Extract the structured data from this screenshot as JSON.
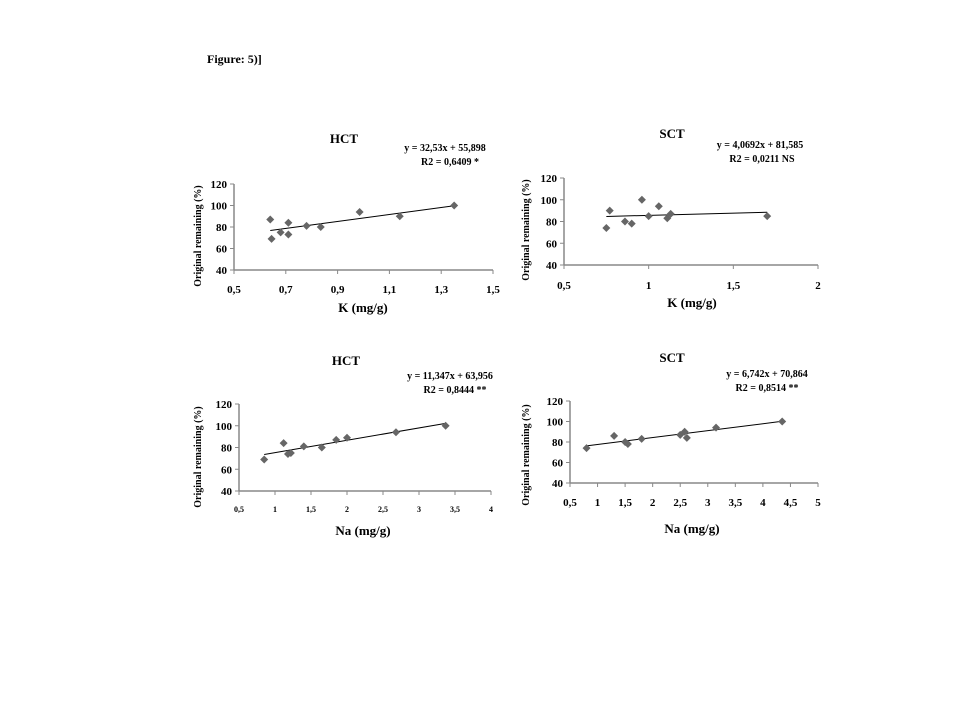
{
  "figure_label": "Figure: 5)]",
  "colors": {
    "marker": "#666666",
    "axis": "#888888",
    "trend": "#000000"
  },
  "chart_data": [
    {
      "type": "scatter",
      "title": "HCT",
      "equation": "y = 32,53x + 55,898",
      "r2": "R2 = 0,6409  *",
      "xlabel": "K (mg/g)",
      "ylabel": "Original remaining (%)",
      "xlim": [
        0.5,
        1.5
      ],
      "ylim": [
        40,
        120
      ],
      "xticks": [
        "0,5",
        "0,7",
        "0,9",
        "1,1",
        "1,3",
        "1,5"
      ],
      "xtick_values": [
        0.5,
        0.7,
        0.9,
        1.1,
        1.3,
        1.5
      ],
      "yticks": [
        "40",
        "60",
        "80",
        "100",
        "120"
      ],
      "ytick_values": [
        40,
        60,
        80,
        100,
        120
      ],
      "trend": {
        "slope": 32.53,
        "intercept": 55.898,
        "x_range": [
          0.64,
          1.35
        ]
      },
      "points": [
        [
          0.64,
          87
        ],
        [
          0.645,
          69
        ],
        [
          0.68,
          75
        ],
        [
          0.71,
          84
        ],
        [
          0.71,
          73
        ],
        [
          0.78,
          81
        ],
        [
          0.835,
          80
        ],
        [
          0.985,
          94
        ],
        [
          1.14,
          90
        ],
        [
          1.35,
          100
        ]
      ]
    },
    {
      "type": "scatter",
      "title": "SCT",
      "equation": "y = 4,0692x + 81,585",
      "r2": "R2 = 0,0211 NS",
      "xlabel": "K (mg/g)",
      "ylabel": "Original remaining (%)",
      "xlim": [
        0.5,
        2
      ],
      "ylim": [
        40,
        120
      ],
      "xticks": [
        "0,5",
        "1",
        "1,5",
        "2"
      ],
      "xtick_values": [
        0.5,
        1,
        1.5,
        2
      ],
      "yticks": [
        "40",
        "60",
        "80",
        "100",
        "120"
      ],
      "ytick_values": [
        40,
        60,
        80,
        100,
        120
      ],
      "trend": {
        "slope": 4.0692,
        "intercept": 81.585,
        "x_range": [
          0.75,
          1.7
        ]
      },
      "points": [
        [
          0.75,
          74
        ],
        [
          0.77,
          90
        ],
        [
          0.86,
          80
        ],
        [
          0.9,
          78
        ],
        [
          0.96,
          100
        ],
        [
          1.0,
          85
        ],
        [
          1.06,
          94
        ],
        [
          1.11,
          83
        ],
        [
          1.13,
          87
        ],
        [
          1.7,
          85
        ]
      ]
    },
    {
      "type": "scatter",
      "title": "HCT",
      "equation": "y = 11,347x + 63,956",
      "r2": "R2 = 0,8444 **",
      "xlabel": "Na (mg/g)",
      "ylabel": "Original remaining (%)",
      "xlim": [
        0.5,
        4
      ],
      "ylim": [
        40,
        120
      ],
      "xticks": [
        "0,5",
        "1",
        "1,5",
        "2",
        "2,5",
        "3",
        "3,5",
        "4"
      ],
      "xtick_values": [
        0.5,
        1,
        1.5,
        2,
        2.5,
        3,
        3.5,
        4
      ],
      "yticks": [
        "40",
        "60",
        "80",
        "100",
        "120"
      ],
      "ytick_values": [
        40,
        60,
        80,
        100,
        120
      ],
      "trend": {
        "slope": 11.347,
        "intercept": 63.956,
        "x_range": [
          0.85,
          3.37
        ]
      },
      "points": [
        [
          0.85,
          69
        ],
        [
          1.12,
          84
        ],
        [
          1.18,
          74
        ],
        [
          1.22,
          75
        ],
        [
          1.4,
          81
        ],
        [
          1.65,
          80
        ],
        [
          1.85,
          87
        ],
        [
          2.0,
          89
        ],
        [
          2.68,
          94
        ],
        [
          3.37,
          100
        ]
      ]
    },
    {
      "type": "scatter",
      "title": "SCT",
      "equation": "y = 6,742x + 70,864",
      "r2": "R2 = 0,8514 **",
      "xlabel": "Na (mg/g)",
      "ylabel": "Original remaining (%)",
      "xlim": [
        0.5,
        5
      ],
      "ylim": [
        40,
        120
      ],
      "xticks": [
        "0,5",
        "1",
        "1,5",
        "2",
        "2,5",
        "3",
        "3,5",
        "4",
        "4,5",
        "5"
      ],
      "xtick_values": [
        0.5,
        1,
        1.5,
        2,
        2.5,
        3,
        3.5,
        4,
        4.5,
        5
      ],
      "yticks": [
        "40",
        "60",
        "80",
        "100",
        "120"
      ],
      "ytick_values": [
        40,
        60,
        80,
        100,
        120
      ],
      "trend": {
        "slope": 6.742,
        "intercept": 70.864,
        "x_range": [
          0.8,
          4.35
        ]
      },
      "points": [
        [
          0.8,
          74
        ],
        [
          1.3,
          86
        ],
        [
          1.5,
          80
        ],
        [
          1.55,
          78
        ],
        [
          1.8,
          83
        ],
        [
          2.5,
          87
        ],
        [
          2.58,
          90
        ],
        [
          2.62,
          84
        ],
        [
          3.15,
          94
        ],
        [
          4.35,
          100
        ]
      ]
    }
  ]
}
